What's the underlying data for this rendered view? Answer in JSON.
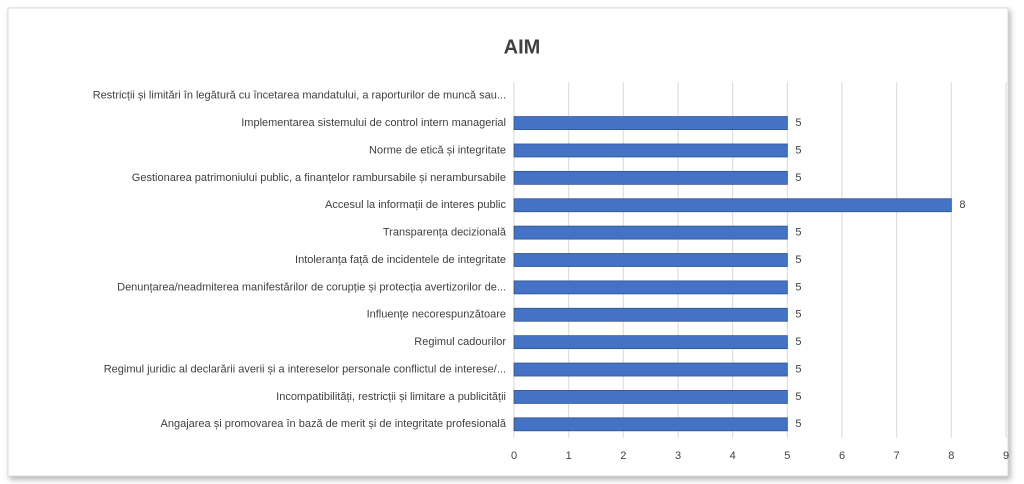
{
  "chart_data": {
    "type": "bar",
    "orientation": "horizontal",
    "title": "AIM",
    "categories": [
      "Restricții și limitări în legătură cu încetarea mandatului, a raporturilor de muncă sau...",
      "Implementarea sistemului de control intern managerial",
      "Norme de etică și integritate",
      "Gestionarea patrimoniului public, a finanțelor rambursabile și nerambursabile",
      "Accesul la informații de interes public",
      "Transparența decizională",
      "Intoleranța față de incidentele de integritate",
      "Denunțarea/neadmiterea manifestărilor de corupție și protecția avertizorilor de...",
      "Influențe necorespunzătoare",
      "Regimul cadourilor",
      "Regimul juridic al declarării averii și a intereselor personale conflictul de interese/...",
      "Incompatibilități, restricții și limitare a publicității",
      "Angajarea și promovarea în bază de merit și de integritate profesională"
    ],
    "values": [
      null,
      5,
      5,
      5,
      8,
      5,
      5,
      5,
      5,
      5,
      5,
      5,
      5
    ],
    "color": "#4472c4",
    "xlim": [
      0,
      9
    ],
    "xticks": [
      0,
      1,
      2,
      3,
      4,
      5,
      6,
      7,
      8,
      9
    ],
    "grid": true
  }
}
